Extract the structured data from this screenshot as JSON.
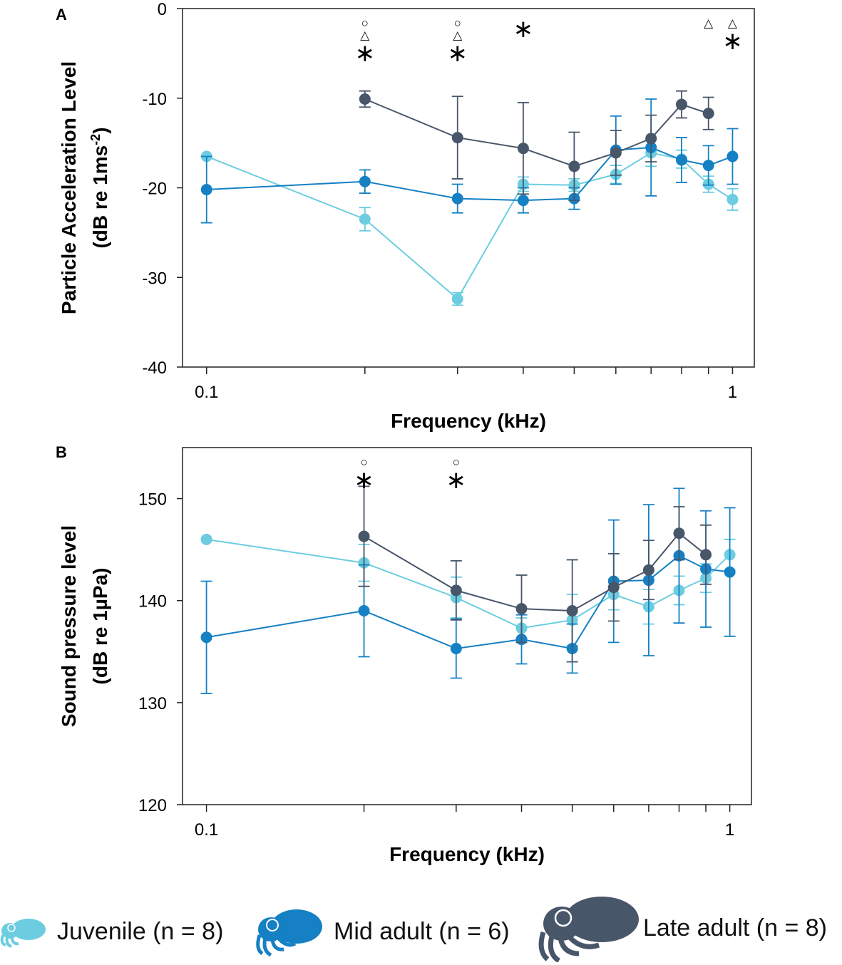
{
  "chart_data": [
    {
      "panel": "A",
      "type": "line",
      "title": "",
      "xlabel": "Frequency (kHz)",
      "ylabel_line1": "Particle Acceleration Level",
      "ylabel_line2_prefix": "(dB re 1ms",
      "ylabel_line2_sup": "-2",
      "ylabel_line2_suffix": ")",
      "xscale": "log",
      "xlim": [
        0.09,
        1.1
      ],
      "ylim": [
        -40,
        0
      ],
      "yticks": [
        0,
        -10,
        -20,
        -30,
        -40
      ],
      "ytick_labels": [
        "0",
        "-10",
        "-20",
        "-30",
        "-40"
      ],
      "xticks": [
        0.1,
        0.2,
        0.3,
        0.4,
        0.5,
        0.6,
        0.7,
        0.8,
        0.9,
        1.0
      ],
      "xtick_labels": {
        "0.1": "0.1",
        "1": "1"
      },
      "x": [
        0.1,
        0.2,
        0.3,
        0.4,
        0.5,
        0.6,
        0.7,
        0.8,
        0.9,
        1.0
      ],
      "series": [
        {
          "name": "Juvenile",
          "color": "#6ccde0",
          "values": [
            -16.5,
            -23.5,
            -32.4,
            -19.6,
            -19.7,
            -18.5,
            -16.1,
            -16.8,
            -19.6,
            -21.3
          ],
          "err": [
            0,
            1.3,
            0.7,
            0.8,
            0.7,
            1.0,
            1.5,
            1.0,
            0.9,
            1.2
          ]
        },
        {
          "name": "Mid adult",
          "color": "#1580c4",
          "values": [
            -20.2,
            -19.3,
            -21.2,
            -21.4,
            -21.2,
            -15.8,
            -15.5,
            -16.9,
            -17.5,
            -16.5
          ],
          "err": [
            3.7,
            1.3,
            1.6,
            1.4,
            1.2,
            3.8,
            5.4,
            2.5,
            2.2,
            3.1
          ]
        },
        {
          "name": "Late adult",
          "color": "#48566a",
          "values": [
            null,
            -10.1,
            -14.4,
            -15.6,
            -17.6,
            -16.1,
            -14.5,
            -10.7,
            -11.7,
            null
          ],
          "err": [
            0,
            0.9,
            4.6,
            5.1,
            3.8,
            2.5,
            2.6,
            1.5,
            1.8,
            0
          ]
        }
      ],
      "significance": [
        {
          "x": 0.2,
          "marks": [
            "○",
            "△",
            "∗"
          ]
        },
        {
          "x": 0.3,
          "marks": [
            "○",
            "△",
            "∗"
          ]
        },
        {
          "x": 0.4,
          "marks": [
            "∗"
          ]
        },
        {
          "x": 0.9,
          "marks": [
            "△"
          ]
        },
        {
          "x": 1.0,
          "marks": [
            "△",
            "∗"
          ]
        }
      ]
    },
    {
      "panel": "B",
      "type": "line",
      "title": "",
      "xlabel": "Frequency (kHz)",
      "ylabel_line1": "Sound pressure level",
      "ylabel_line2_prefix": "(dB re 1µPa)",
      "ylabel_line2_sup": "",
      "ylabel_line2_suffix": "",
      "xscale": "log",
      "xlim": [
        0.09,
        1.1
      ],
      "ylim": [
        120,
        155
      ],
      "yticks": [
        120,
        130,
        140,
        150
      ],
      "ytick_labels": [
        "120",
        "130",
        "140",
        "150"
      ],
      "xticks": [
        0.1,
        0.2,
        0.3,
        0.4,
        0.5,
        0.6,
        0.7,
        0.8,
        0.9,
        1.0
      ],
      "xtick_labels": {
        "0.1": "0.1",
        "1": "1"
      },
      "x": [
        0.1,
        0.2,
        0.3,
        0.4,
        0.5,
        0.6,
        0.7,
        0.8,
        0.9,
        1.0
      ],
      "series": [
        {
          "name": "Juvenile",
          "color": "#6ccde0",
          "values": [
            146.0,
            143.7,
            140.3,
            137.3,
            138.1,
            140.6,
            139.4,
            141.0,
            142.2,
            144.5
          ],
          "err": [
            0,
            1.8,
            2.0,
            1.0,
            2.5,
            1.5,
            1.7,
            1.4,
            1.4,
            1.5
          ]
        },
        {
          "name": "Mid adult",
          "color": "#1580c4",
          "values": [
            136.4,
            139.0,
            135.3,
            136.2,
            135.3,
            141.9,
            142.0,
            144.4,
            143.1,
            142.8
          ],
          "err": [
            5.5,
            4.5,
            2.9,
            2.4,
            2.4,
            6.0,
            7.4,
            6.6,
            5.7,
            6.3
          ]
        },
        {
          "name": "Late adult",
          "color": "#48566a",
          "values": [
            null,
            146.3,
            141.0,
            139.2,
            139.0,
            141.3,
            143.0,
            146.6,
            144.5,
            null
          ],
          "err": [
            0,
            4.9,
            2.9,
            3.3,
            5.0,
            3.3,
            2.9,
            2.6,
            2.9,
            0
          ]
        }
      ],
      "significance": [
        {
          "x": 0.2,
          "marks": [
            "○",
            "∗"
          ]
        },
        {
          "x": 0.3,
          "marks": [
            "○",
            "∗"
          ]
        }
      ]
    }
  ],
  "legend": [
    {
      "label": "Juvenile (n = 8)",
      "color": "#6ccde0"
    },
    {
      "label": "Mid adult (n = 6)",
      "color": "#1580c4"
    },
    {
      "label": "Late adult (n = 8)",
      "color": "#48566a"
    }
  ]
}
